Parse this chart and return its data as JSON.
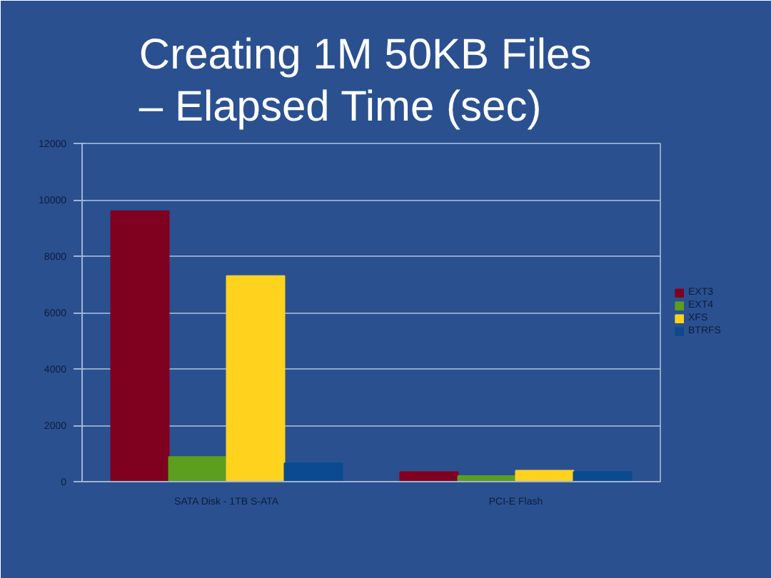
{
  "chart_data": {
    "type": "bar",
    "title": "Creating 1M  50KB Files\n– Elapsed Time (sec)",
    "categories": [
      "SATA Disk - 1TB S-ATA",
      "PCI-E Flash"
    ],
    "series": [
      {
        "name": "EXT3",
        "color": "#800020",
        "values": [
          9600,
          340
        ]
      },
      {
        "name": "EXT4",
        "color": "#5c9e1e",
        "values": [
          880,
          200
        ]
      },
      {
        "name": "XFS",
        "color": "#ffd21e",
        "values": [
          7300,
          390
        ]
      },
      {
        "name": "BTRFS",
        "color": "#0b4a8e",
        "values": [
          650,
          350
        ]
      }
    ],
    "ylim": [
      0,
      12000
    ],
    "yticks": [
      0,
      2000,
      4000,
      6000,
      8000,
      10000,
      12000
    ],
    "grid": "y",
    "legend": "right"
  }
}
